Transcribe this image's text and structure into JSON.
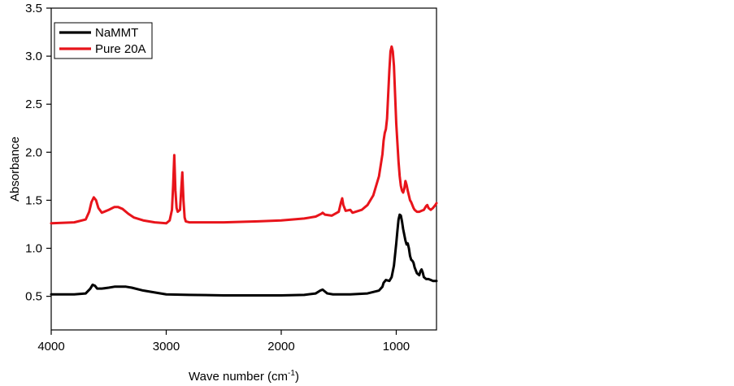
{
  "chart_data": {
    "type": "line",
    "title": "",
    "xlabel": "Wave number (cm",
    "xlabel_sup": "-1",
    "xlabel_close": ")",
    "ylabel": "Absorbance",
    "xlim": [
      4000,
      650
    ],
    "x_reversed": true,
    "ylim": [
      0.15,
      3.5
    ],
    "x_ticks": [
      4000,
      3000,
      2000,
      1000
    ],
    "x_tick_labels": [
      "4000",
      "3000",
      "2000",
      "1000"
    ],
    "y_ticks": [
      0.5,
      1.0,
      1.5,
      2.0,
      2.5,
      3.0,
      3.5
    ],
    "y_tick_labels": [
      "0.5",
      "1.0",
      "1.5",
      "2.0",
      "2.5",
      "3.0",
      "3.5"
    ],
    "grid": false,
    "legend_position": "top-left",
    "series": [
      {
        "name": "NaMMT",
        "color": "#000000",
        "x": [
          4000,
          3800,
          3700,
          3660,
          3640,
          3620,
          3600,
          3560,
          3500,
          3450,
          3400,
          3350,
          3300,
          3200,
          3100,
          3000,
          2800,
          2500,
          2000,
          1800,
          1700,
          1660,
          1640,
          1620,
          1600,
          1550,
          1400,
          1250,
          1150,
          1120,
          1110,
          1090,
          1060,
          1040,
          1020,
          1000,
          990,
          980,
          970,
          960,
          950,
          940,
          920,
          910,
          900,
          890,
          880,
          870,
          860,
          850,
          840,
          820,
          800,
          790,
          780,
          770,
          760,
          740,
          720,
          700,
          680,
          660,
          650
        ],
        "y": [
          0.52,
          0.52,
          0.53,
          0.58,
          0.62,
          0.61,
          0.58,
          0.58,
          0.59,
          0.6,
          0.6,
          0.6,
          0.59,
          0.56,
          0.54,
          0.52,
          0.515,
          0.51,
          0.51,
          0.515,
          0.53,
          0.56,
          0.57,
          0.55,
          0.53,
          0.52,
          0.52,
          0.53,
          0.56,
          0.6,
          0.64,
          0.67,
          0.66,
          0.7,
          0.82,
          1.05,
          1.18,
          1.3,
          1.35,
          1.34,
          1.28,
          1.2,
          1.08,
          1.04,
          1.05,
          1.0,
          0.92,
          0.88,
          0.87,
          0.85,
          0.8,
          0.74,
          0.72,
          0.76,
          0.78,
          0.75,
          0.7,
          0.68,
          0.68,
          0.67,
          0.66,
          0.66,
          0.66
        ]
      },
      {
        "name": "Pure 20A",
        "color": "#e8141b",
        "x": [
          4000,
          3800,
          3700,
          3670,
          3650,
          3630,
          3610,
          3590,
          3560,
          3500,
          3450,
          3420,
          3380,
          3330,
          3280,
          3200,
          3100,
          3000,
          2970,
          2950,
          2940,
          2930,
          2920,
          2910,
          2900,
          2880,
          2870,
          2860,
          2850,
          2840,
          2830,
          2800,
          2700,
          2500,
          2200,
          2000,
          1800,
          1700,
          1650,
          1640,
          1620,
          1560,
          1500,
          1480,
          1470,
          1460,
          1440,
          1400,
          1380,
          1300,
          1250,
          1200,
          1150,
          1120,
          1110,
          1100,
          1090,
          1080,
          1070,
          1060,
          1050,
          1040,
          1030,
          1020,
          1010,
          1000,
          990,
          980,
          970,
          960,
          950,
          940,
          930,
          920,
          910,
          900,
          890,
          880,
          870,
          860,
          850,
          840,
          820,
          800,
          780,
          760,
          740,
          730,
          720,
          700,
          680,
          660,
          650
        ],
        "y": [
          1.26,
          1.27,
          1.3,
          1.38,
          1.48,
          1.53,
          1.5,
          1.42,
          1.37,
          1.4,
          1.43,
          1.43,
          1.41,
          1.36,
          1.32,
          1.29,
          1.27,
          1.26,
          1.29,
          1.4,
          1.65,
          1.97,
          1.6,
          1.42,
          1.38,
          1.4,
          1.6,
          1.79,
          1.5,
          1.32,
          1.28,
          1.27,
          1.27,
          1.27,
          1.28,
          1.29,
          1.31,
          1.33,
          1.36,
          1.37,
          1.35,
          1.34,
          1.38,
          1.48,
          1.52,
          1.45,
          1.39,
          1.4,
          1.37,
          1.4,
          1.45,
          1.55,
          1.75,
          1.98,
          2.12,
          2.2,
          2.24,
          2.35,
          2.6,
          2.85,
          3.05,
          3.1,
          3.05,
          2.9,
          2.6,
          2.3,
          2.1,
          1.9,
          1.75,
          1.65,
          1.6,
          1.58,
          1.62,
          1.7,
          1.66,
          1.6,
          1.55,
          1.5,
          1.48,
          1.45,
          1.42,
          1.4,
          1.38,
          1.38,
          1.39,
          1.4,
          1.44,
          1.45,
          1.42,
          1.4,
          1.42,
          1.45,
          1.47
        ]
      }
    ]
  }
}
